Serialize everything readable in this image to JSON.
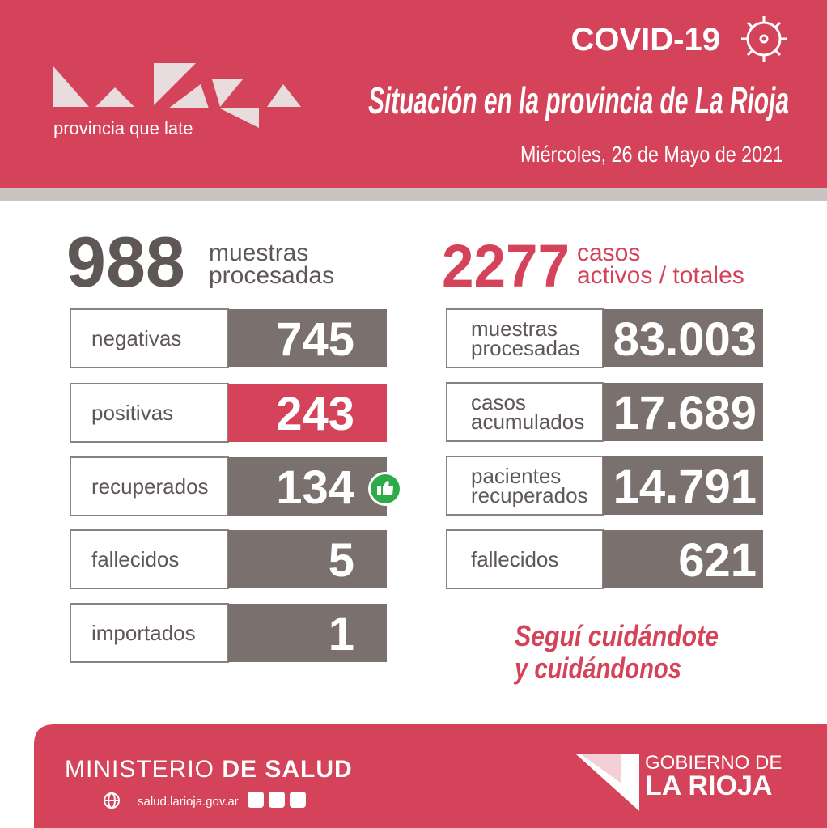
{
  "header": {
    "title": "COVID-19",
    "subtitle": "Situación en la provincia de La Rioja",
    "date": "Miércoles,  26 de Mayo de 2021",
    "logo_tagline": "provincia que late"
  },
  "daily": {
    "total": "988",
    "total_label": [
      "muestras",
      "procesadas"
    ],
    "rows": [
      {
        "label": "negativas",
        "value": "745",
        "color": "#7a706d"
      },
      {
        "label": "positivas",
        "value": "243",
        "color": "#d5435a"
      },
      {
        "label": "recuperados",
        "value": "134",
        "color": "#7a706d"
      },
      {
        "label": "fallecidos",
        "value": "5",
        "color": "#7a706d"
      },
      {
        "label": "importados",
        "value": "1",
        "color": "#7a706d"
      }
    ]
  },
  "cumulative": {
    "total": "2277",
    "total_label": [
      "casos",
      "activos / totales"
    ],
    "rows": [
      {
        "label": [
          "muestras",
          "procesadas"
        ],
        "value": "83.003",
        "color": "#7a706d"
      },
      {
        "label": [
          "casos",
          "acumulados"
        ],
        "value": "17.689",
        "color": "#7a706d"
      },
      {
        "label": [
          "pacientes",
          "recuperados"
        ],
        "value": "14.791",
        "color": "#7a706d"
      },
      {
        "label": [
          "fallecidos"
        ],
        "value": "621",
        "color": "#7a706d"
      }
    ]
  },
  "message": [
    "Seguí cuidándote",
    "y cuidándonos"
  ],
  "footer": {
    "ministry": "MINISTERIO",
    "ministry_bold": "DE SALUD",
    "website": "salud.larioja.gov.ar",
    "government": [
      "GOBIERNO DE",
      "LA RIOJA"
    ]
  }
}
